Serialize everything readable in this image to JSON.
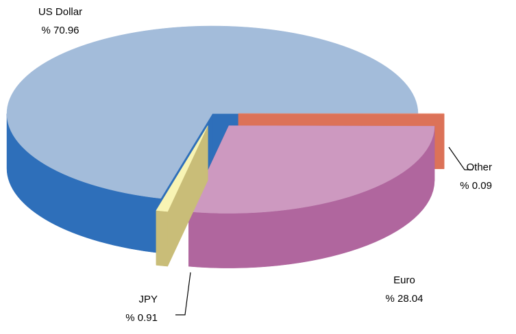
{
  "chart_data": {
    "type": "pie3d",
    "categories": [
      "US Dollar",
      "JPY",
      "Euro",
      "Other"
    ],
    "values": [
      70.96,
      0.91,
      28.04,
      0.09
    ],
    "value_labels": [
      "% 70.96",
      "% 0.91",
      "% 28.04",
      "% 0.09"
    ],
    "colors": [
      "#a3bcda",
      "#f8f4b4",
      "#cd99c0",
      "#e8876a"
    ],
    "side_colors": [
      "#2e6fba",
      "#c9bd78",
      "#b0669e",
      "#dc7258"
    ]
  }
}
